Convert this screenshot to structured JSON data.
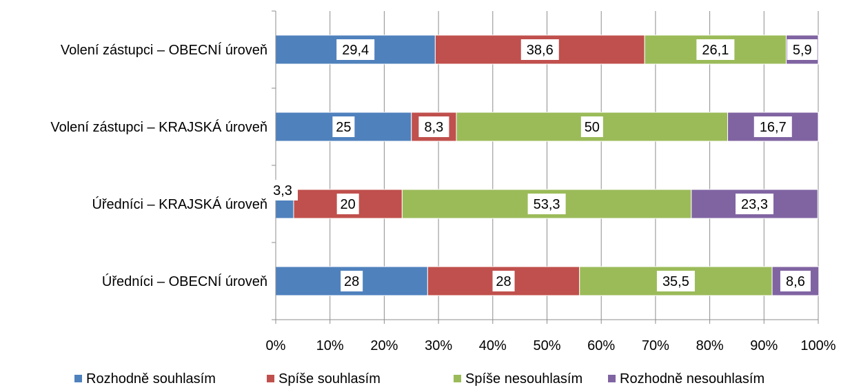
{
  "chart_data": {
    "type": "bar",
    "orientation": "horizontal",
    "stacked": "percent",
    "categories": [
      "Volení zástupci – OBECNÍ úroveň",
      "Volení zástupci – KRAJSKÁ úroveň",
      "Úředníci – KRAJSKÁ úroveň",
      "Úředníci – OBECNÍ úroveň"
    ],
    "series": [
      {
        "name": "Rozhodně souhlasím",
        "color": "#4F81BD",
        "values": [
          29.4,
          25,
          3.3,
          28
        ],
        "labels": [
          "29,4",
          "25",
          "3,3",
          "28"
        ]
      },
      {
        "name": "Spíše souhlasím",
        "color": "#C0504D",
        "values": [
          38.6,
          8.3,
          20,
          28
        ],
        "labels": [
          "38,6",
          "8,3",
          "20",
          "28"
        ]
      },
      {
        "name": "Spíše nesouhlasím",
        "color": "#9BBB59",
        "values": [
          26.1,
          50,
          53.3,
          35.5
        ],
        "labels": [
          "26,1",
          "50",
          "53,3",
          "35,5"
        ]
      },
      {
        "name": "Rozhodně nesouhlasím",
        "color": "#8064A2",
        "values": [
          5.9,
          16.7,
          23.3,
          8.6
        ],
        "labels": [
          "5,9",
          "16,7",
          "23,3",
          "8,6"
        ]
      }
    ],
    "x_ticks": [
      "0%",
      "10%",
      "20%",
      "30%",
      "40%",
      "50%",
      "60%",
      "70%",
      "80%",
      "90%",
      "100%"
    ],
    "xlim": [
      0,
      100
    ],
    "grid": true,
    "legend_position": "bottom"
  }
}
